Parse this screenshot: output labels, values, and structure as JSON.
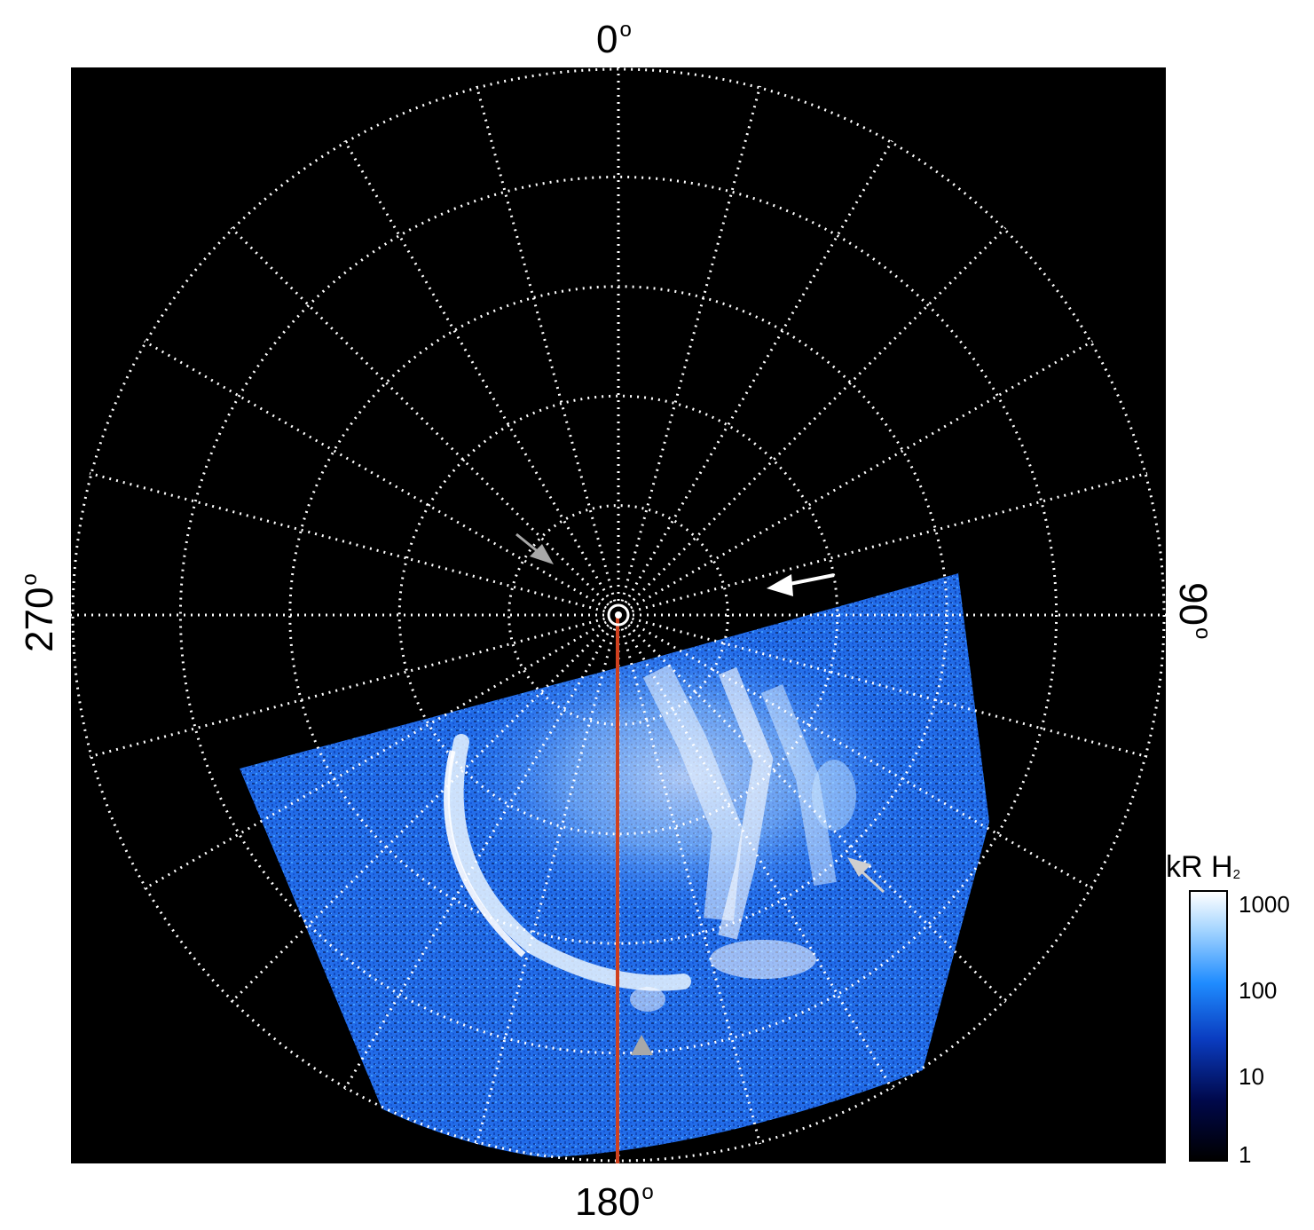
{
  "labels": {
    "top": "0",
    "right": "90",
    "bottom": "180",
    "left": "270",
    "degree_symbol": "o"
  },
  "colorbar": {
    "title": "kR H",
    "title_subscript": "2",
    "ticks": [
      "1000",
      "100",
      "10",
      "1"
    ],
    "scale": "log",
    "colors": [
      "#000000",
      "#00084a",
      "#0a3cc0",
      "#1f8cff",
      "#9fd2ff",
      "#ffffff"
    ]
  },
  "colors": {
    "background": "#000000",
    "grid": "#ffffff",
    "meridian_line": "#d0411f",
    "arrow_white": "#ffffff",
    "arrow_gray": "#a8a8a8"
  },
  "grid": {
    "style": "dotted",
    "meridian_spacing_deg": 15,
    "circle_count": 5
  },
  "icons": [
    "arrow-icon",
    "arrow-icon",
    "arrow-icon",
    "arrow-icon"
  ]
}
